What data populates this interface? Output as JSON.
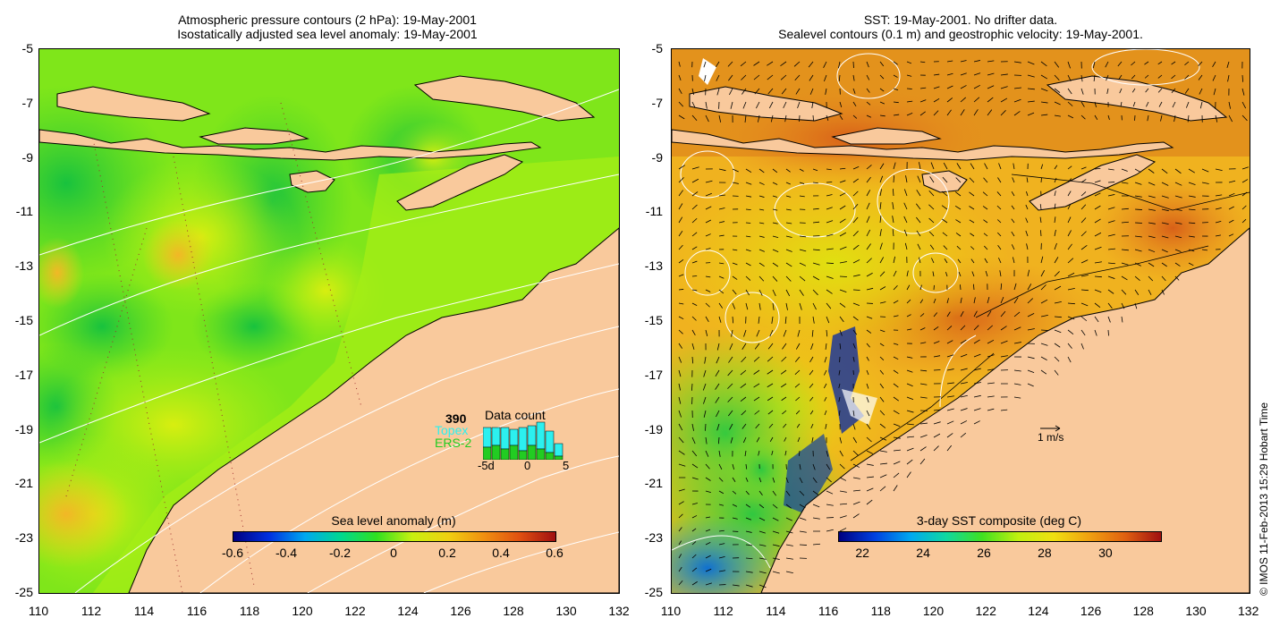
{
  "left_panel": {
    "title_line1": "Atmospheric pressure contours (2 hPa): 19-May-2001",
    "title_line2": "Isostatically adjusted sea level anomaly: 19-May-2001",
    "colorbar": {
      "label": "Sea level anomaly (m)",
      "ticks": [
        "-0.6",
        "-0.4",
        "-0.2",
        "0",
        "0.2",
        "0.4",
        "0.6"
      ],
      "range": [
        -0.6,
        0.6
      ]
    },
    "data_count": {
      "title": "Data count",
      "total": "390",
      "sat1": "Topex",
      "sat2": "ERS-2",
      "axis_labels": [
        "-5d",
        "0",
        "5"
      ],
      "topex_color": "#2cf0ef",
      "ers_color": "#22cc22"
    }
  },
  "right_panel": {
    "title_line1": "SST: 19-May-2001. No drifter data.",
    "title_line2": "Sealevel contours (0.1 m) and geostrophic velocity: 19-May-2001.",
    "velocity_scale": "1 m/s",
    "colorbar": {
      "label": "3-day SST composite (deg C)",
      "ticks": [
        "22",
        "24",
        "26",
        "28",
        "30"
      ],
      "range": [
        21.2,
        31.8
      ]
    }
  },
  "axes": {
    "y_ticks": [
      "-5",
      "-7",
      "-9",
      "-11",
      "-13",
      "-15",
      "-17",
      "-19",
      "-21",
      "-23",
      "-25"
    ],
    "x_ticks": [
      "110",
      "112",
      "114",
      "116",
      "118",
      "120",
      "122",
      "124",
      "126",
      "128",
      "130",
      "132"
    ],
    "lon_range": [
      110,
      132
    ],
    "lat_range": [
      -25,
      -5
    ]
  },
  "credit": "© IMOS 11-Feb-2013 15:29 Hobart Time",
  "colors": {
    "land": "#f9c99c",
    "sla_background": "#7fe61a",
    "sst_background": "#f0b21f"
  }
}
